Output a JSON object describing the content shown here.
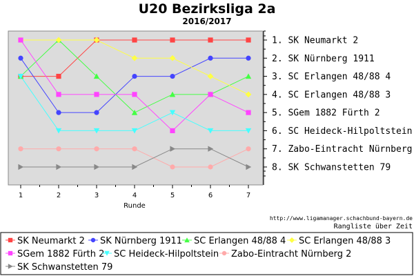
{
  "chart_data": {
    "type": "line",
    "title": "U20 Bezirksliga 2a",
    "subtitle": "2016/2017",
    "xlabel": "Runde",
    "ylabel": "",
    "x": [
      1,
      2,
      3,
      4,
      5,
      6,
      7
    ],
    "ylim": [
      1,
      8
    ],
    "y_inverted": true,
    "grid": false,
    "legend_position": "bottom",
    "right_ranking": [
      "1. SK Neumarkt 2",
      "2. SK Nürnberg 1911",
      "3. SC Erlangen 48/88 4",
      "4. SC Erlangen 48/88 3",
      "5. SGem 1882 Fürth 2",
      "6. SC Heideck-Hilpoltstein",
      "7. Zabo-Eintracht Nürnberg 2",
      "8. SK Schwanstetten 79"
    ],
    "series": [
      {
        "name": "SK Neumarkt 2",
        "color": "#ff4444",
        "marker": "square",
        "values": [
          3,
          3,
          1,
          1,
          1,
          1,
          1
        ]
      },
      {
        "name": "SK Nürnberg 1911",
        "color": "#4444ff",
        "marker": "circle",
        "values": [
          2,
          5,
          5,
          3,
          3,
          2,
          2
        ]
      },
      {
        "name": "SC Erlangen 48/88 4",
        "color": "#44ff44",
        "marker": "triangle-up",
        "values": [
          3,
          1,
          3,
          5,
          4,
          4,
          3
        ]
      },
      {
        "name": "SC Erlangen 48/88 3",
        "color": "#ffff44",
        "marker": "diamond",
        "values": [
          1,
          1,
          1,
          2,
          2,
          3,
          4
        ]
      },
      {
        "name": "SGem 1882 Fürth 2",
        "color": "#ff44ff",
        "marker": "square",
        "values": [
          1,
          4,
          4,
          4,
          6,
          4,
          5
        ]
      },
      {
        "name": "SC Heideck-Hilpoltstein",
        "color": "#44ffff",
        "marker": "triangle-down",
        "values": [
          3,
          6,
          6,
          6,
          5,
          6,
          6
        ]
      },
      {
        "name": "Zabo-Eintracht Nürnberg 2",
        "color": "#ffaaaa",
        "marker": "circle",
        "values": [
          7,
          7,
          7,
          7,
          8,
          8,
          7
        ]
      },
      {
        "name": "SK Schwanstetten 79",
        "color": "#888888",
        "marker": "triangle-right",
        "values": [
          8,
          8,
          8,
          8,
          7,
          7,
          8
        ]
      }
    ]
  },
  "footer": {
    "credit": "http://www.ligamanager.schachbund-bayern.de",
    "note": "Rangliste über Zeit"
  }
}
